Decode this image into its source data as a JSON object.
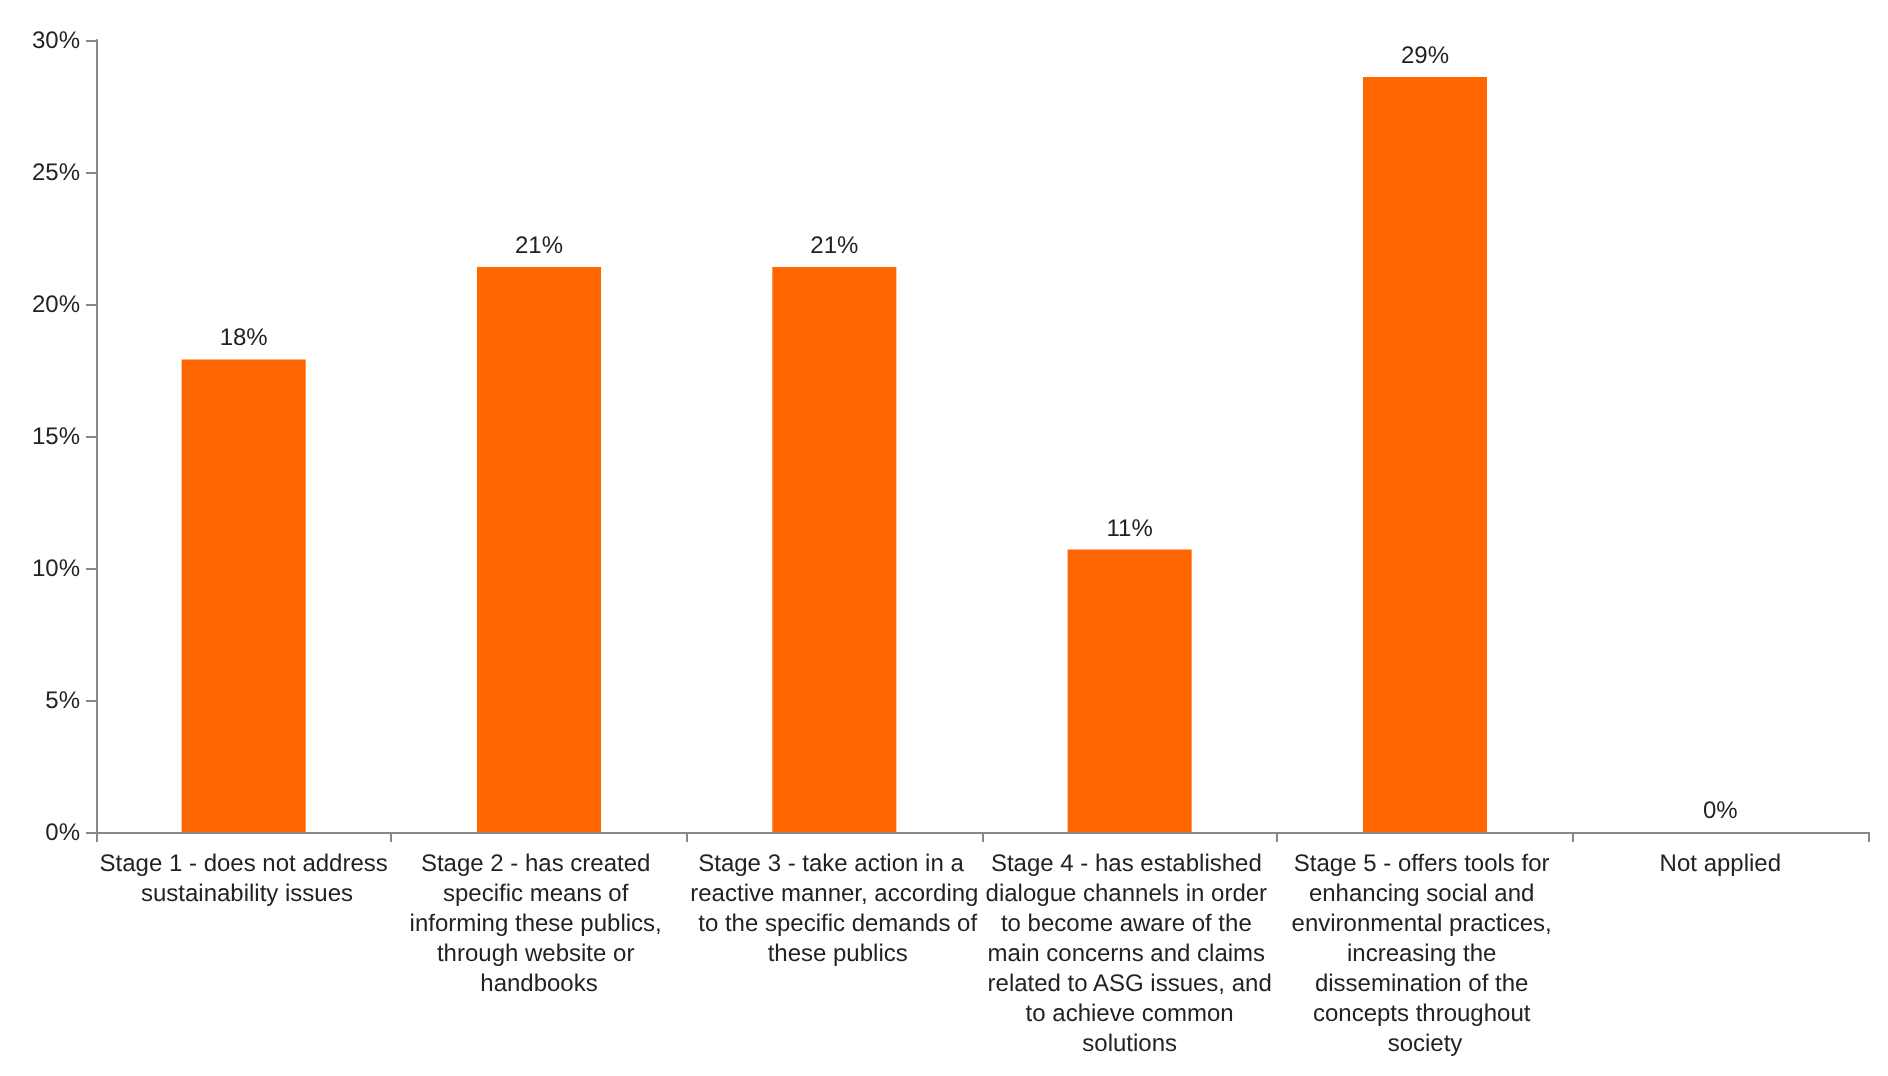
{
  "chart_data": {
    "type": "bar",
    "categories": [
      "Stage 1 - does not address sustainability issues",
      "Stage 2 - has created specific means of informing these publics, through website or handbooks",
      "Stage 3 - take action in a reactive manner, according to the specific demands of these publics",
      "Stage 4 - has established dialogue channels in order to become aware of the main concerns and claims related to ASG issues, and to achieve common solutions",
      "Stage 5 - offers tools for enhancing social and environmental practices, increasing the dissemination of the concepts throughout society",
      "Not applied"
    ],
    "values": [
      17.9,
      21.4,
      21.4,
      10.7,
      28.6,
      0
    ],
    "value_labels": [
      "18%",
      "21%",
      "21%",
      "11%",
      "29%",
      "0%"
    ],
    "color": "#ff6600",
    "ylim": [
      0,
      30
    ],
    "yticks": [
      {
        "value": 0,
        "label": "0%"
      },
      {
        "value": 5,
        "label": "5%"
      },
      {
        "value": 10,
        "label": "10%"
      },
      {
        "value": 15,
        "label": "15%"
      },
      {
        "value": 20,
        "label": "20%"
      },
      {
        "value": 25,
        "label": "25%"
      },
      {
        "value": 30,
        "label": "30%"
      }
    ]
  }
}
